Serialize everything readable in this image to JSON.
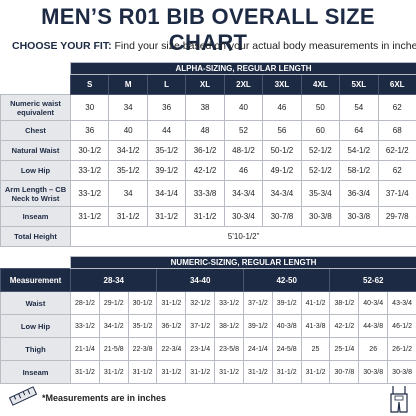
{
  "header": {
    "title": "MEN’S R01 BIB OVERALL SIZE CHART",
    "subtitle_lead": "CHOOSE YOUR FIT:",
    "subtitle": "Find your size based on your actual body measurements in inches."
  },
  "alpha": {
    "title": "ALPHA-SIZING, REGULAR LENGTH",
    "columns": [
      "S",
      "M",
      "L",
      "XL",
      "2XL",
      "3XL",
      "4XL",
      "5XL",
      "6XL"
    ],
    "rows": [
      {
        "label": "Numeric waist equivalent",
        "values": [
          "30",
          "34",
          "36",
          "38",
          "40",
          "46",
          "50",
          "54",
          "62"
        ]
      },
      {
        "label": "Chest",
        "values": [
          "36",
          "40",
          "44",
          "48",
          "52",
          "56",
          "60",
          "64",
          "68"
        ]
      },
      {
        "label": "Natural Waist",
        "values": [
          "30-1/2",
          "34-1/2",
          "35-1/2",
          "36-1/2",
          "48-1/2",
          "50-1/2",
          "52-1/2",
          "54-1/2",
          "62-1/2"
        ]
      },
      {
        "label": "Low Hip",
        "values": [
          "33-1/2",
          "35-1/2",
          "39-1/2",
          "42-1/2",
          "46",
          "49-1/2",
          "52-1/2",
          "58-1/2",
          "62"
        ]
      },
      {
        "label": "Arm Length – CB Neck to Wrist",
        "values": [
          "33-1/2",
          "34",
          "34-1/4",
          "33-3/8",
          "34-3/4",
          "34-3/4",
          "35-3/4",
          "36-3/4",
          "37-1/4"
        ]
      },
      {
        "label": "Inseam",
        "values": [
          "31-1/2",
          "31-1/2",
          "31-1/2",
          "31-1/2",
          "30-3/4",
          "30-7/8",
          "30-3/8",
          "30-3/8",
          "29-7/8"
        ]
      }
    ],
    "total": {
      "label": "Total Height",
      "value": "5’10-1/2”"
    }
  },
  "numeric": {
    "title": "NUMERIC-SIZING, REGULAR LENGTH",
    "corner": "Measurement",
    "groups": [
      "28-34",
      "34-40",
      "42-50",
      "52-62"
    ],
    "rows": [
      {
        "label": "Waist",
        "values": [
          "28-1/2",
          "29-1/2",
          "30-1/2",
          "31-1/2",
          "32-1/2",
          "33-1/2",
          "37-1/2",
          "39-1/2",
          "41-1/2",
          "38-1/2",
          "40-3/4",
          "43-3/4"
        ]
      },
      {
        "label": "Low Hip",
        "values": [
          "33-1/2",
          "34-1/2",
          "35-1/2",
          "36-1/2",
          "37-1/2",
          "38-1/2",
          "39-1/2",
          "40-3/8",
          "41-3/8",
          "42-1/2",
          "44-3/8",
          "46-1/2"
        ]
      },
      {
        "label": "Thigh",
        "values": [
          "21-1/4",
          "21-5/8",
          "22-3/8",
          "22-3/4",
          "23-1/4",
          "23-5/8",
          "24-1/4",
          "24-5/8",
          "25",
          "25-1/4",
          "26",
          "26-1/2"
        ]
      },
      {
        "label": "Inseam",
        "values": [
          "31-1/2",
          "31-1/2",
          "31-1/2",
          "31-1/2",
          "31-1/2",
          "31-1/2",
          "31-1/2",
          "31-1/2",
          "31-1/2",
          "30-7/8",
          "30-3/8",
          "30-3/8"
        ]
      }
    ]
  },
  "footer": "*Measurements are in inches"
}
